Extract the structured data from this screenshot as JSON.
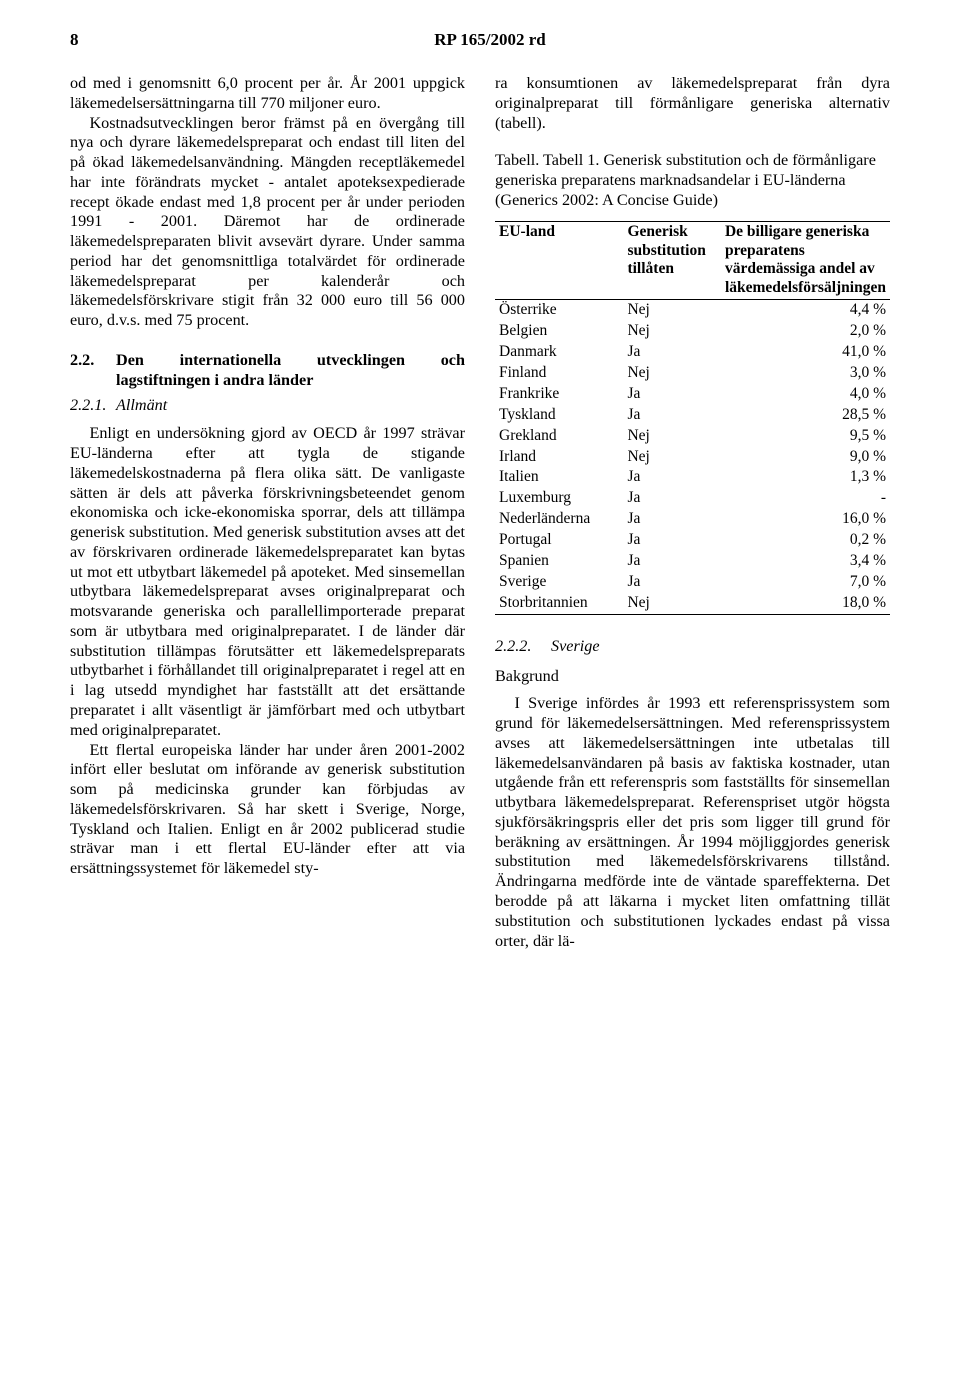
{
  "header": {
    "page_number": "8",
    "doc_title": "RP 165/2002 rd"
  },
  "left": {
    "p1": "od med i genomsnitt 6,0 procent per år. År 2001 uppgick läkemedelsersättningarna till 770 miljoner euro.",
    "p2": "Kostnadsutvecklingen beror främst på en övergång till nya och dyrare läkemedelspreparat och endast till liten del på ökad läkemedelsanvändning. Mängden receptläkemedel har inte förändrats mycket - antalet apoteksexpedierade recept ökade endast med 1,8 procent per år under perioden 1991 - 2001. Däremot har de ordinerade läkemedelspreparaten blivit avsevärt dyrare. Under samma period har det genomsnittliga totalvärdet för ordinerade läkemedelspreparat per kalenderår och läkemedelsförskrivare stigit från 32 000 euro till 56 000 euro, d.v.s. med 75 procent.",
    "sec22_num": "2.2.",
    "sec22_title": "Den internationella utvecklingen och lagstiftningen i andra länder",
    "sec221_num": "2.2.1.",
    "sec221_title": "Allmänt",
    "p3": "Enligt en undersökning gjord av OECD år 1997 strävar EU-länderna efter att tygla de stigande läkemedelskostnaderna på flera olika sätt. De vanligaste sätten är dels att påverka förskrivningsbeteendet genom ekonomiska och icke-ekonomiska sporrar, dels att tillämpa generisk substitution. Med generisk substitution avses att det av förskrivaren ordinerade läkemedelspreparatet kan bytas ut mot ett utbytbart läkemedel på apoteket. Med sinsemellan utbytbara läkemedelspreparat avses originalpreparat och motsvarande generiska och parallellimporterade preparat som är utbytbara med originalpreparatet. I de länder där substitution tillämpas förutsätter ett läkemedelspreparats utbytbarhet i förhållandet till originalpreparatet  i regel att en i lag utsedd myndighet har fastställt att det ersättande preparatet i allt väsentligt är jämförbart med och utbytbart med originalpreparatet.",
    "p4": "Ett flertal europeiska länder har under åren 2001-2002 infört eller beslutat om införande av generisk substitution som på medicinska grunder kan förbjudas av läkemedelsförskrivaren. Så har skett i Sverige, Norge, Tyskland och Italien. Enligt en år 2002 publicerad studie strävar man i ett flertal EU-länder efter att via ersättningssystemet för läkemedel sty-"
  },
  "right": {
    "p1": "ra konsumtionen av läkemedelspreparat från dyra originalpreparat till förmånligare generiska alternativ (tabell).",
    "caption": "Tabell. Tabell 1. Generisk substitution och de förmånligare generiska preparatens marknadsandelar i EU-länderna (Generics 2002: A Concise Guide)",
    "table": {
      "columns": [
        "EU-land",
        "Generisk substitution tillåten",
        "De billigare generiska preparatens värdemässiga andel av läkemedelsförsäljningen"
      ],
      "col_widths": [
        "36%",
        "26%",
        "38%"
      ],
      "header_fontsize": 15.5,
      "body_fontsize": 15.5,
      "border_color": "#000000",
      "rows": [
        [
          "Österrike",
          "Nej",
          "4,4 %"
        ],
        [
          "Belgien",
          "Nej",
          "2,0 %"
        ],
        [
          "Danmark",
          "Ja",
          "41,0 %"
        ],
        [
          "Finland",
          "Nej",
          "3,0 %"
        ],
        [
          "Frankrike",
          "Ja",
          "4,0 %"
        ],
        [
          "Tyskland",
          "Ja",
          "28,5 %"
        ],
        [
          "Grekland",
          "Nej",
          "9,5 %"
        ],
        [
          "Irland",
          "Nej",
          "9,0 %"
        ],
        [
          "Italien",
          "Ja",
          "1,3 %"
        ],
        [
          "Luxemburg",
          "Ja",
          "-"
        ],
        [
          "Nederländerna",
          "Ja",
          "16,0 %"
        ],
        [
          "Portugal",
          "Ja",
          "0,2 %"
        ],
        [
          "Spanien",
          "Ja",
          "3,4 %"
        ],
        [
          "Sverige",
          "Ja",
          "7,0 %"
        ],
        [
          "Storbritannien",
          "Nej",
          "18,0 %"
        ]
      ]
    },
    "sec222_num": "2.2.2.",
    "sec222_title": "Sverige",
    "bakgrund": "Bakgrund",
    "p2": "I Sverige infördes år 1993 ett referensprissystem som grund för läkemedelsersättningen. Med referensprissystem avses att  läkemedelsersättningen inte utbetalas till läkemedelsanvändaren på basis av faktiska kostnader, utan utgående från ett referenspris som fastställts för sinsemellan utbytbara läkemedelspreparat. Referenspriset utgör högsta sjukförsäkringspris eller det pris som ligger till grund för beräkning av ersättningen. År 1994 möjliggjordes generisk substitution med läkemedelsförskrivarens tillstånd. Ändringarna medförde inte de väntade spareffekterna. Det berodde på att läkarna i mycket liten omfattning tillät substitution och substitutionen lyckades endast på vissa orter, där lä-"
  }
}
